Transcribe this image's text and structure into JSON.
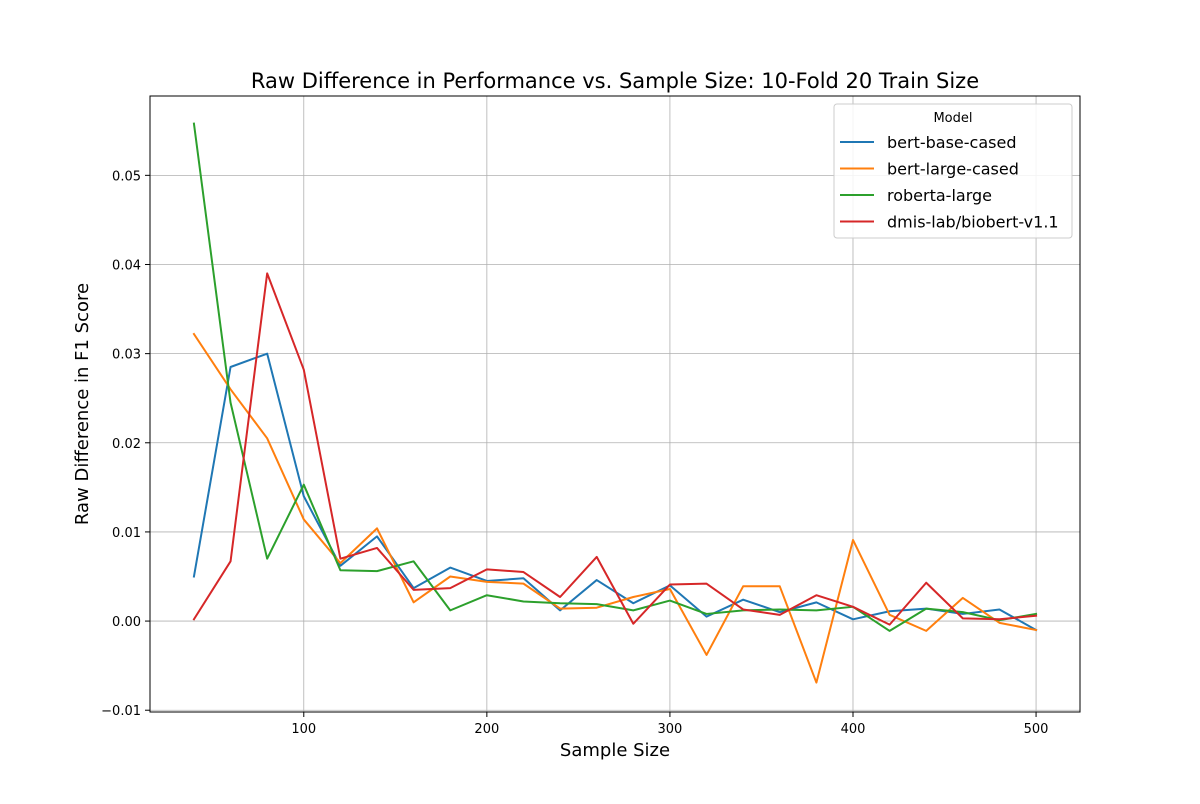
{
  "chart_data": {
    "type": "line",
    "title": "Raw Difference in Performance vs. Sample Size: 10-Fold 20 Train Size",
    "xlabel": "Sample Size",
    "ylabel": "Raw Difference in F1 Score",
    "xlim": [
      16,
      524
    ],
    "ylim": [
      -0.0102,
      0.0589
    ],
    "xticks": [
      100,
      200,
      300,
      400,
      500
    ],
    "xtick_labels": [
      "100",
      "200",
      "300",
      "400",
      "500"
    ],
    "yticks": [
      -0.01,
      0.0,
      0.01,
      0.02,
      0.03,
      0.04,
      0.05
    ],
    "ytick_labels": [
      "−0.01",
      "0.00",
      "0.01",
      "0.02",
      "0.03",
      "0.04",
      "0.05"
    ],
    "grid": true,
    "legend_title": "Model",
    "legend_position": "top-right",
    "x": [
      40,
      60,
      80,
      100,
      120,
      140,
      160,
      180,
      200,
      220,
      240,
      260,
      280,
      300,
      320,
      340,
      360,
      380,
      400,
      420,
      440,
      460,
      480,
      500
    ],
    "series": [
      {
        "name": "bert-base-cased",
        "color": "#1f77b4",
        "values": [
          0.005,
          0.0285,
          0.03,
          0.014,
          0.0062,
          0.0095,
          0.0037,
          0.006,
          0.0045,
          0.0048,
          0.0012,
          0.0046,
          0.002,
          0.004,
          0.0005,
          0.0024,
          0.001,
          0.0021,
          0.0002,
          0.0011,
          0.0014,
          0.0008,
          0.0013,
          -0.001
        ]
      },
      {
        "name": "bert-large-cased",
        "color": "#ff7f0e",
        "values": [
          0.0322,
          0.026,
          0.0205,
          0.0114,
          0.0065,
          0.0104,
          0.0021,
          0.005,
          0.0044,
          0.0042,
          0.0014,
          0.0015,
          0.0027,
          0.0036,
          -0.0038,
          0.0039,
          0.0039,
          -0.0069,
          0.0091,
          0.0007,
          -0.0011,
          0.0026,
          -0.0002,
          -0.001
        ]
      },
      {
        "name": "roberta-large",
        "color": "#2ca02c",
        "values": [
          0.0558,
          0.0245,
          0.007,
          0.0153,
          0.0057,
          0.0056,
          0.0067,
          0.0012,
          0.0029,
          0.0022,
          0.002,
          0.0019,
          0.0012,
          0.0023,
          0.0008,
          0.0012,
          0.0013,
          0.0012,
          0.0016,
          -0.0011,
          0.0014,
          0.001,
          0.0001,
          0.0008
        ]
      },
      {
        "name": "dmis-lab/biobert-v1.1",
        "color": "#d62728",
        "values": [
          0.0002,
          0.0067,
          0.039,
          0.0282,
          0.007,
          0.0082,
          0.0035,
          0.0037,
          0.0058,
          0.0055,
          0.0027,
          0.0072,
          -0.0003,
          0.0041,
          0.0042,
          0.0013,
          0.0007,
          0.0029,
          0.0016,
          -0.0004,
          0.0043,
          0.0003,
          0.0002,
          0.0006
        ]
      }
    ]
  }
}
